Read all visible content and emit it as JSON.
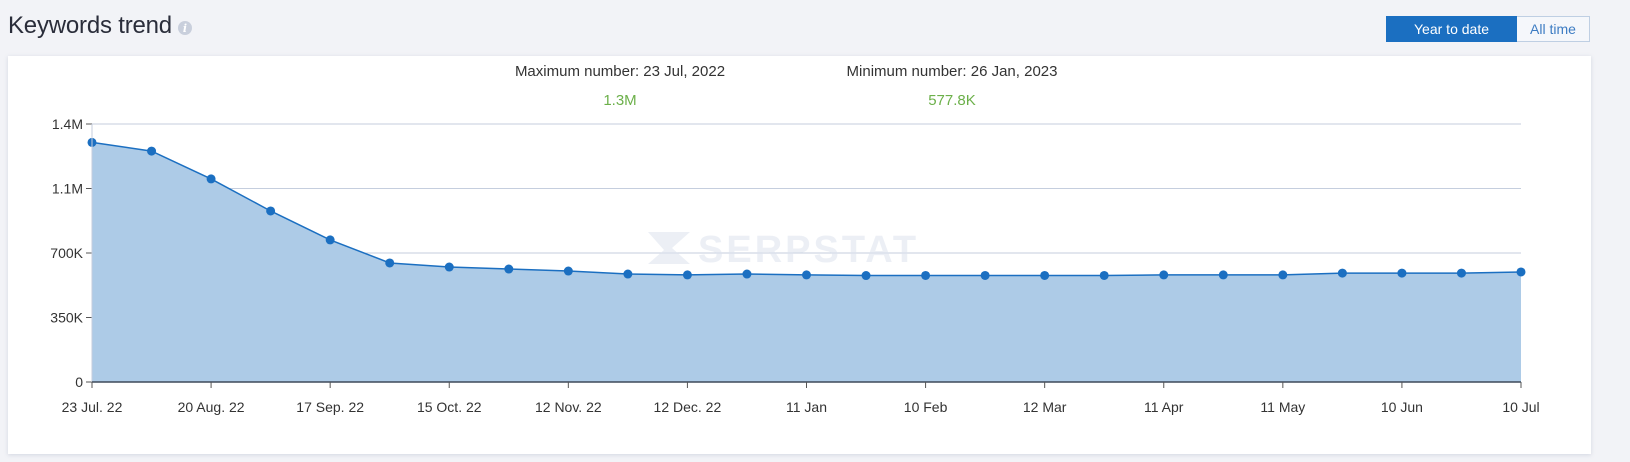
{
  "header": {
    "title": "Keywords trend",
    "info_icon": "info-icon"
  },
  "toggle": {
    "options": [
      {
        "label": "Year to date",
        "active": true
      },
      {
        "label": "All time",
        "active": false
      }
    ]
  },
  "stats": {
    "max_label": "Maximum number: 23 Jul, 2022",
    "max_value": "1.3M",
    "min_label": "Minimum number: 26 Jan, 2023",
    "min_value": "577.8K"
  },
  "watermark": "SERPSTAT",
  "colors": {
    "accent": "#1b6fc1",
    "area_fill": "#adcbe7",
    "line": "#1b6fc1",
    "stat_value": "#6cb04a",
    "grid": "#c5cede"
  },
  "chart_data": {
    "type": "area",
    "title": "Keywords trend",
    "xlabel": "",
    "ylabel": "",
    "ylim": [
      0,
      1400000
    ],
    "y_ticks": [
      {
        "value": 0,
        "label": "0"
      },
      {
        "value": 350000,
        "label": "350K"
      },
      {
        "value": 700000,
        "label": "700K"
      },
      {
        "value": 1050000,
        "label": "1.1M"
      },
      {
        "value": 1400000,
        "label": "1.4M"
      }
    ],
    "x_tick_labels": [
      "23 Jul. 22",
      "20 Aug. 22",
      "17 Sep. 22",
      "15 Oct. 22",
      "12 Nov. 22",
      "12 Dec. 22",
      "11 Jan",
      "10 Feb",
      "12 Mar",
      "11 Apr",
      "11 May",
      "10 Jun",
      "10 Jul"
    ],
    "grid": true,
    "legend": "none",
    "series": [
      {
        "name": "Keywords",
        "values": [
          1300000,
          1253000,
          1102000,
          928000,
          771000,
          646000,
          624000,
          613000,
          602000,
          586000,
          581000,
          586000,
          581000,
          577800,
          578000,
          578000,
          578000,
          578000,
          581000,
          581000,
          581000,
          591000,
          591000,
          591000,
          597000
        ]
      }
    ]
  }
}
